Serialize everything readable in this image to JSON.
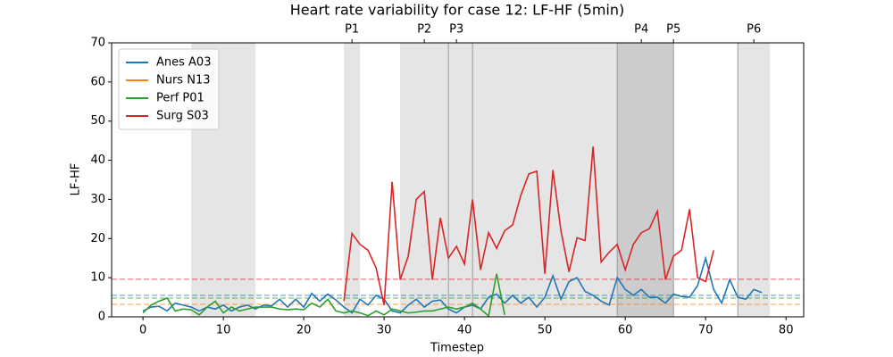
{
  "chart_data": {
    "type": "line",
    "title": "Heart rate variability for case 12: LF-HF (5min)",
    "x_label": "Timestep",
    "y_label": "LF-HF",
    "xlim": [
      -3.9,
      82.2
    ],
    "ylim": [
      0,
      70
    ],
    "xticks": [
      0,
      10,
      20,
      30,
      40,
      50,
      60,
      70,
      80
    ],
    "yticks": [
      0,
      10,
      20,
      30,
      40,
      50,
      60,
      70
    ],
    "top_ticks": [
      {
        "value": 26,
        "label": "P1"
      },
      {
        "value": 35,
        "label": "P2"
      },
      {
        "value": 39,
        "label": "P3"
      },
      {
        "value": 62,
        "label": "P4"
      },
      {
        "value": 66,
        "label": "P5"
      },
      {
        "value": 76,
        "label": "P6"
      }
    ],
    "regions": [
      {
        "span": [
          6,
          14
        ],
        "color": "#e5e5e5"
      },
      {
        "span": [
          25,
          27
        ],
        "color": "#e5e5e5"
      },
      {
        "span": [
          32,
          59
        ],
        "color": "#e5e5e5"
      },
      {
        "span": [
          59,
          66
        ],
        "color": "#cccccc"
      },
      {
        "span": [
          74,
          78
        ],
        "color": "#e5e5e5"
      }
    ],
    "vlines": [
      38,
      41,
      59,
      66,
      74
    ],
    "legend": "upper left",
    "series": [
      {
        "name": "Anes A03",
        "color": "#1f77b4",
        "mean": 5.5,
        "x": [
          0,
          1,
          2,
          3,
          4,
          5,
          6,
          7,
          8,
          9,
          10,
          11,
          12,
          13,
          14,
          15,
          16,
          17,
          18,
          19,
          20,
          21,
          22,
          23,
          24,
          25,
          26,
          27,
          28,
          29,
          30,
          31,
          32,
          33,
          34,
          35,
          36,
          37,
          38,
          39,
          40,
          41,
          42,
          43,
          44,
          45,
          46,
          47,
          48,
          49,
          50,
          51,
          52,
          53,
          54,
          55,
          56,
          57,
          58,
          59,
          60,
          61,
          62,
          63,
          64,
          65,
          66,
          67,
          68,
          69,
          70,
          71,
          72,
          73,
          74,
          75,
          76,
          77
        ],
        "values": [
          1.5,
          2.5,
          2.7,
          1.5,
          3.5,
          3.0,
          2.5,
          1.5,
          2.5,
          2.0,
          3.0,
          1.5,
          2.5,
          3.0,
          2.0,
          3.0,
          2.8,
          4.5,
          2.5,
          4.5,
          2.5,
          6.0,
          4.0,
          5.8,
          4.3,
          2.5,
          1.0,
          4.5,
          3.0,
          5.5,
          4.5,
          1.5,
          1.0,
          3.0,
          4.5,
          2.5,
          4.0,
          4.3,
          2.0,
          1.0,
          2.5,
          3.0,
          2.0,
          5.0,
          5.8,
          3.5,
          5.5,
          3.5,
          5.0,
          2.5,
          5.0,
          10.5,
          4.5,
          9.0,
          10.0,
          6.5,
          5.5,
          4.0,
          3.0,
          10.0,
          7.0,
          5.5,
          7.0,
          5.0,
          5.0,
          3.5,
          5.8,
          5.2,
          5.0,
          8.0,
          15.0,
          7.0,
          3.5,
          9.5,
          5.0,
          4.5,
          7.0,
          6.2
        ]
      },
      {
        "name": "Nurs N13",
        "color": "#ff7f0e",
        "mean": 3.2,
        "x": [],
        "values": []
      },
      {
        "name": "Perf P01",
        "color": "#2ca02c",
        "mean": 4.8,
        "x": [
          0,
          1,
          2,
          3,
          4,
          5,
          6,
          7,
          8,
          9,
          10,
          11,
          12,
          13,
          14,
          15,
          16,
          17,
          18,
          19,
          20,
          21,
          22,
          23,
          24,
          25,
          26,
          27,
          28,
          29,
          30,
          31,
          32,
          33,
          34,
          35,
          36,
          37,
          38,
          39,
          40,
          41,
          42,
          43,
          44,
          45
        ],
        "values": [
          1.0,
          3.0,
          4.0,
          4.8,
          1.5,
          2.0,
          1.8,
          0.5,
          2.5,
          4.0,
          1.0,
          2.5,
          1.5,
          2.0,
          2.5,
          2.5,
          2.5,
          2.0,
          1.8,
          2.0,
          1.8,
          3.5,
          2.5,
          4.5,
          1.5,
          1.0,
          1.5,
          1.0,
          0.3,
          1.5,
          0.5,
          2.0,
          1.5,
          1.0,
          1.2,
          1.5,
          1.5,
          2.0,
          2.5,
          2.0,
          2.5,
          3.5,
          2.0,
          0.2,
          11.0,
          0.5
        ]
      },
      {
        "name": "Surg S03",
        "color": "#d62728",
        "mean": 9.6,
        "x": [
          25,
          26,
          27,
          28,
          29,
          30,
          31,
          32,
          33,
          34,
          35,
          36,
          37,
          38,
          39,
          40,
          41,
          42,
          43,
          44,
          45,
          46,
          47,
          48,
          49,
          50,
          51,
          52,
          53,
          54,
          55,
          56,
          57,
          58,
          59,
          60,
          61,
          62,
          63,
          64,
          65,
          66,
          67,
          68,
          69,
          70,
          71
        ],
        "values": [
          4.0,
          21.3,
          18.5,
          17.0,
          12.5,
          3.0,
          34.5,
          9.5,
          15.5,
          30.0,
          32.0,
          9.5,
          25.3,
          15.0,
          18.0,
          13.5,
          30.0,
          12.0,
          21.5,
          17.5,
          22.0,
          23.5,
          31.0,
          36.5,
          37.2,
          11.0,
          37.5,
          22.0,
          11.5,
          20.2,
          19.5,
          43.5,
          14.0,
          16.5,
          18.5,
          12.0,
          18.5,
          21.5,
          22.5,
          27.0,
          9.5,
          15.5,
          17.0,
          27.5,
          10.0,
          9.0,
          17.0
        ]
      }
    ]
  }
}
